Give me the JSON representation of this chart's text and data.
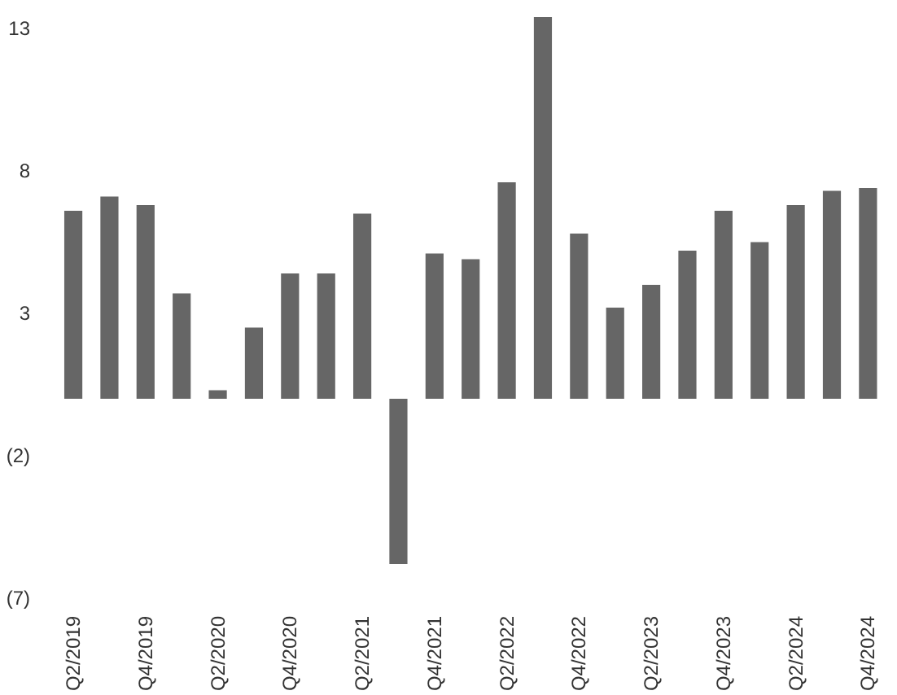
{
  "chart_data": {
    "type": "bar",
    "categories": [
      "Q2/2019",
      null,
      "Q4/2019",
      null,
      "Q2/2020",
      null,
      "Q4/2020",
      null,
      "Q2/2021",
      null,
      "Q4/2021",
      null,
      "Q2/2022",
      null,
      "Q4/2022",
      null,
      "Q2/2023",
      null,
      "Q4/2023",
      null,
      "Q2/2024",
      null,
      "Q4/2024"
    ],
    "values": [
      6.6,
      7.1,
      6.8,
      3.7,
      0.3,
      2.5,
      4.4,
      4.4,
      6.5,
      -5.8,
      5.1,
      4.9,
      7.6,
      13.4,
      5.8,
      3.2,
      4.0,
      5.2,
      6.6,
      5.5,
      6.8,
      7.3,
      7.4
    ],
    "color": "#666666",
    "ylim": [
      -7,
      13.4
    ],
    "yticks": [
      {
        "value": -7,
        "label": "(7)"
      },
      {
        "value": -2,
        "label": "(2)"
      },
      3,
      8,
      13
    ],
    "grid": false
  }
}
